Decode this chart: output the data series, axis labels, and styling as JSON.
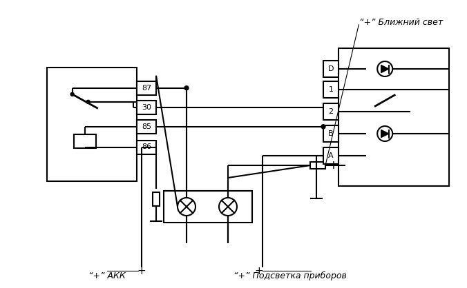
{
  "bg_color": "#ffffff",
  "line_color": "#000000",
  "lw": 1.5,
  "title": "",
  "text_blizhny": "“+” Ближний свет",
  "text_akk": "“+” АКК",
  "text_podvetka": "“+” Подсветка приборов",
  "relay_labels": [
    "87",
    "30",
    "85",
    "86"
  ],
  "switch_labels": [
    "D",
    "1",
    "2",
    "B",
    "A"
  ],
  "font_size": 9
}
